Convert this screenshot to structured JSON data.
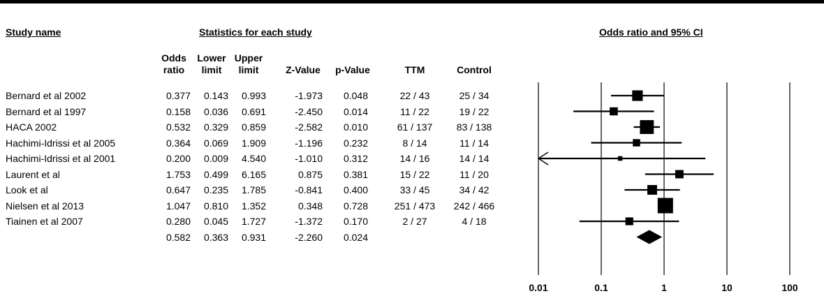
{
  "headers": {
    "study_name": "Study name",
    "statistics": "Statistics for each study",
    "odds_ratio_ci": "Odds ratio and 95% CI"
  },
  "columns": [
    {
      "key": "or",
      "line1": "Odds",
      "line2": "ratio"
    },
    {
      "key": "lower",
      "line1": "Lower",
      "line2": "limit"
    },
    {
      "key": "upper",
      "line1": "Upper",
      "line2": "limit"
    },
    {
      "key": "z",
      "line1": "",
      "line2": "Z-Value"
    },
    {
      "key": "p",
      "line1": "",
      "line2": "p-Value"
    },
    {
      "key": "ttm",
      "line1": "",
      "line2": "TTM"
    },
    {
      "key": "control",
      "line1": "",
      "line2": "Control"
    }
  ],
  "chart_data": {
    "type": "forest",
    "xscale": "log",
    "xlim": [
      0.01,
      100
    ],
    "xticks": [
      "0.01",
      "0.1",
      "1",
      "10",
      "100"
    ],
    "rows": [
      {
        "study": "Bernard et al 2002",
        "or": "0.377",
        "lower": "0.143",
        "upper": "0.993",
        "z": "-1.973",
        "p": "0.048",
        "ttm": "22 / 43",
        "control": "25 / 34",
        "weight": 0.62
      },
      {
        "study": "Bernard et al 1997",
        "or": "0.158",
        "lower": "0.036",
        "upper": "0.691",
        "z": "-2.450",
        "p": "0.014",
        "ttm": "11 / 22",
        "control": "19 / 22",
        "weight": 0.42
      },
      {
        "study": "HACA 2002",
        "or": "0.532",
        "lower": "0.329",
        "upper": "0.859",
        "z": "-2.582",
        "p": "0.010",
        "ttm": "61 / 137",
        "control": "83 / 138",
        "weight": 0.88
      },
      {
        "study": "Hachimi-Idrissi et al 2005",
        "or": "0.364",
        "lower": "0.069",
        "upper": "1.909",
        "z": "-1.196",
        "p": "0.232",
        "ttm": "8 / 14",
        "control": "11 / 14",
        "weight": 0.36
      },
      {
        "study": "Hachimi-Idrissi et al 2001",
        "or": "0.200",
        "lower": "0.009",
        "upper": "4.540",
        "z": "-1.010",
        "p": "0.312",
        "ttm": "14 / 16",
        "control": "14 / 14",
        "weight": 0.14
      },
      {
        "study": "Laurent et al",
        "or": "1.753",
        "lower": "0.499",
        "upper": "6.165",
        "z": "0.875",
        "p": "0.381",
        "ttm": "15 / 22",
        "control": "11 / 20",
        "weight": 0.44
      },
      {
        "study": "Look et al",
        "or": "0.647",
        "lower": "0.235",
        "upper": "1.785",
        "z": "-0.841",
        "p": "0.400",
        "ttm": "33 / 45",
        "control": "34 / 42",
        "weight": 0.55
      },
      {
        "study": "Nielsen et al 2013",
        "or": "1.047",
        "lower": "0.810",
        "upper": "1.352",
        "z": "0.348",
        "p": "0.728",
        "ttm": "251 / 473",
        "control": "242 / 466",
        "weight": 1.0
      },
      {
        "study": "Tiainen et al 2007",
        "or": "0.280",
        "lower": "0.045",
        "upper": "1.727",
        "z": "-1.372",
        "p": "0.170",
        "ttm": "2 / 27",
        "control": "4 / 18",
        "weight": 0.4
      }
    ],
    "summary": {
      "study": "",
      "or": "0.582",
      "lower": "0.363",
      "upper": "0.931",
      "z": "-2.260",
      "p": "0.024",
      "ttm": "",
      "control": ""
    }
  }
}
